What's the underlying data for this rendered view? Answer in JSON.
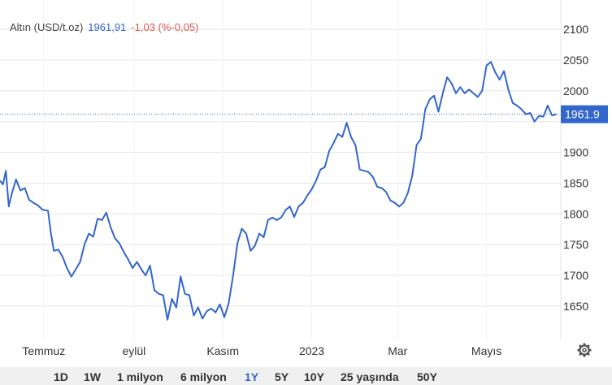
{
  "legend": {
    "instrument": "Altın (USD/t.oz)",
    "value": "1961,91",
    "change": "-1,03 (%-0,05)"
  },
  "price_tag": "1961.9",
  "colors": {
    "line": "#3366cc",
    "value_text": "#3366cc",
    "change_text": "#e0544f",
    "grid": "#e6e6e6",
    "axis_text": "#333333",
    "tag_bg": "#3366cc"
  },
  "ranges": [
    "1D",
    "1W",
    "1 milyon",
    "6 milyon",
    "1Y",
    "5Y",
    "10Y",
    "25 yaşında",
    "50Y"
  ],
  "active_range": "1Y",
  "settings_icon": "gear-icon",
  "chart_data": {
    "type": "line",
    "title": "Altın (USD/t.oz)",
    "xlabel": "",
    "ylabel": "",
    "y_ticks": [
      1650,
      1700,
      1750,
      1800,
      1850,
      1900,
      1950,
      2000,
      2050,
      2100
    ],
    "y_tick_labels": [
      "1650",
      "1700",
      "1750",
      "1800",
      "1850",
      "1900",
      "",
      "2000",
      "2050",
      "2100"
    ],
    "ylim": [
      1610,
      2110
    ],
    "x_tick_labels": [
      "Temmuz",
      "eylül",
      "Kasım",
      "2023",
      "Mar",
      "Mayıs"
    ],
    "x_ticks": [
      "2022-07-01",
      "2022-09-01",
      "2022-11-01",
      "2023-01-01",
      "2023-03-01",
      "2023-05-01"
    ],
    "xlim": [
      "2022-06-01",
      "2023-06-21"
    ],
    "grid": true,
    "last_value": 1961.91,
    "series": [
      {
        "x": [
          "2022-06-01",
          "2022-06-03",
          "2022-06-05",
          "2022-06-07",
          "2022-06-09",
          "2022-06-12",
          "2022-06-15",
          "2022-06-18",
          "2022-06-21",
          "2022-06-24",
          "2022-06-27",
          "2022-06-30",
          "2022-07-02",
          "2022-07-04",
          "2022-07-06",
          "2022-07-08",
          "2022-07-11",
          "2022-07-14",
          "2022-07-17",
          "2022-07-20",
          "2022-07-23",
          "2022-07-26",
          "2022-07-29",
          "2022-08-01",
          "2022-08-04",
          "2022-08-07",
          "2022-08-10",
          "2022-08-13",
          "2022-08-16",
          "2022-08-19",
          "2022-08-22",
          "2022-08-25",
          "2022-08-28",
          "2022-08-31",
          "2022-09-03",
          "2022-09-06",
          "2022-09-09",
          "2022-09-12",
          "2022-09-15",
          "2022-09-18",
          "2022-09-21",
          "2022-09-24",
          "2022-09-27",
          "2022-09-30",
          "2022-10-03",
          "2022-10-06",
          "2022-10-09",
          "2022-10-12",
          "2022-10-15",
          "2022-10-18",
          "2022-10-21",
          "2022-10-24",
          "2022-10-27",
          "2022-10-30",
          "2022-11-02",
          "2022-11-05",
          "2022-11-08",
          "2022-11-11",
          "2022-11-14",
          "2022-11-17",
          "2022-11-20",
          "2022-11-23",
          "2022-11-26",
          "2022-11-29",
          "2022-12-02",
          "2022-12-05",
          "2022-12-08",
          "2022-12-11",
          "2022-12-14",
          "2022-12-17",
          "2022-12-20",
          "2022-12-23",
          "2022-12-26",
          "2022-12-29",
          "2023-01-01",
          "2023-01-04",
          "2023-01-07",
          "2023-01-10",
          "2023-01-13",
          "2023-01-16",
          "2023-01-19",
          "2023-01-22",
          "2023-01-25",
          "2023-01-28",
          "2023-01-31",
          "2023-02-03",
          "2023-02-06",
          "2023-02-09",
          "2023-02-12",
          "2023-02-15",
          "2023-02-18",
          "2023-02-21",
          "2023-02-24",
          "2023-02-27",
          "2023-03-02",
          "2023-03-05",
          "2023-03-08",
          "2023-03-11",
          "2023-03-14",
          "2023-03-17",
          "2023-03-20",
          "2023-03-23",
          "2023-03-26",
          "2023-03-29",
          "2023-04-01",
          "2023-04-04",
          "2023-04-07",
          "2023-04-10",
          "2023-04-13",
          "2023-04-16",
          "2023-04-19",
          "2023-04-22",
          "2023-04-25",
          "2023-04-28",
          "2023-05-01",
          "2023-05-04",
          "2023-05-07",
          "2023-05-10",
          "2023-05-13",
          "2023-05-16",
          "2023-05-19",
          "2023-05-22",
          "2023-05-25",
          "2023-05-28",
          "2023-05-31",
          "2023-06-03",
          "2023-06-06",
          "2023-06-09",
          "2023-06-12",
          "2023-06-15",
          "2023-06-18"
        ],
        "values": [
          1854,
          1848,
          1870,
          1812,
          1832,
          1856,
          1838,
          1842,
          1823,
          1818,
          1814,
          1807,
          1806,
          1805,
          1768,
          1740,
          1742,
          1730,
          1712,
          1698,
          1710,
          1722,
          1750,
          1768,
          1763,
          1792,
          1790,
          1802,
          1778,
          1760,
          1752,
          1738,
          1726,
          1712,
          1722,
          1710,
          1700,
          1716,
          1676,
          1670,
          1668,
          1628,
          1662,
          1648,
          1698,
          1670,
          1668,
          1635,
          1648,
          1630,
          1642,
          1646,
          1640,
          1653,
          1632,
          1655,
          1700,
          1752,
          1776,
          1768,
          1740,
          1748,
          1768,
          1762,
          1790,
          1794,
          1790,
          1794,
          1806,
          1812,
          1795,
          1812,
          1818,
          1830,
          1840,
          1854,
          1872,
          1876,
          1902,
          1915,
          1930,
          1925,
          1948,
          1925,
          1912,
          1872,
          1870,
          1868,
          1860,
          1844,
          1842,
          1836,
          1822,
          1818,
          1812,
          1818,
          1834,
          1862,
          1912,
          1922,
          1970,
          1986,
          1992,
          1966,
          1996,
          2022,
          2012,
          1996,
          2006,
          1996,
          2002,
          1996,
          1990,
          2000,
          2041,
          2047,
          2030,
          2018,
          2032,
          2002,
          1980,
          1976,
          1970,
          1962,
          1964,
          1950,
          1959,
          1958,
          1976,
          1960,
          1961.91
        ]
      }
    ]
  }
}
